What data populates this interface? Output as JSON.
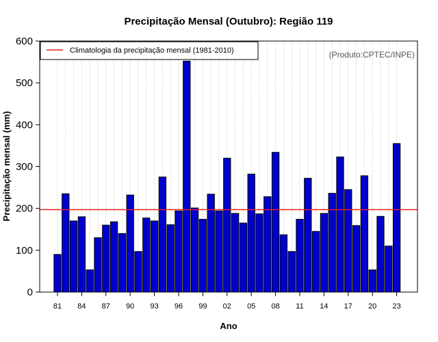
{
  "chart_data": {
    "type": "bar",
    "title": "Precipitação Mensal (Outubro): Região 119",
    "xlabel": "Ano",
    "ylabel": "Precipitação mensal (mm)",
    "ylim": [
      0,
      600
    ],
    "yticks": [
      0,
      100,
      200,
      300,
      400,
      500,
      600
    ],
    "categories": [
      "1981",
      "1982",
      "1983",
      "1984",
      "1985",
      "1986",
      "1987",
      "1988",
      "1989",
      "1990",
      "1991",
      "1992",
      "1993",
      "1994",
      "1995",
      "1996",
      "1997",
      "1998",
      "1999",
      "2000",
      "2001",
      "2002",
      "2003",
      "2004",
      "2005",
      "2006",
      "2007",
      "2008",
      "2009",
      "2010",
      "2011",
      "2012",
      "2013",
      "2014",
      "2015",
      "2016",
      "2017",
      "2018",
      "2019",
      "2020",
      "2021",
      "2022",
      "2023"
    ],
    "xtick_labels": [
      "81",
      "84",
      "87",
      "90",
      "93",
      "96",
      "99",
      "02",
      "05",
      "08",
      "11",
      "14",
      "17",
      "20",
      "23"
    ],
    "xtick_every": 3,
    "values": [
      90,
      235,
      170,
      180,
      53,
      130,
      160,
      168,
      140,
      232,
      97,
      177,
      170,
      275,
      161,
      194,
      552,
      201,
      174,
      234,
      194,
      320,
      188,
      165,
      282,
      187,
      228,
      334,
      137,
      97,
      174,
      272,
      145,
      188,
      236,
      323,
      245,
      159,
      278,
      53,
      181,
      110,
      355
    ],
    "climatology": 197,
    "legend": [
      "Climatologia da precipitação mensal (1981-2010)"
    ],
    "legend_position": "top-left",
    "source_note": "(Produto:CPTEC/INPE)",
    "grid": true,
    "colors": {
      "bar": "#0000CC",
      "bar_edge": "#000000",
      "climatology": "#E32222",
      "grid": "#C8C8C8"
    }
  }
}
